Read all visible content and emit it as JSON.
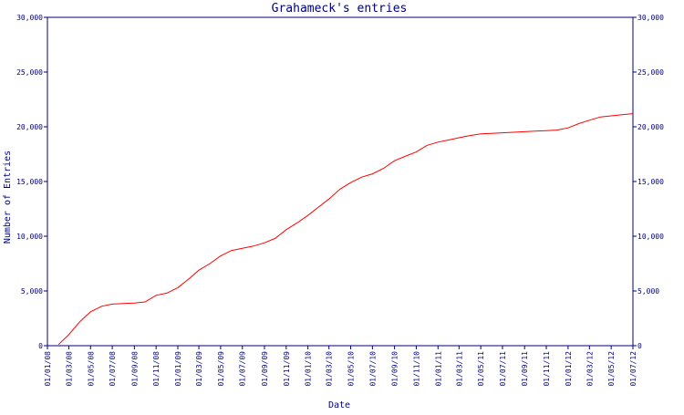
{
  "chart_data": {
    "type": "line",
    "title": "Grahameck's entries",
    "xlabel": "Date",
    "ylabel": "Number of Entries",
    "ylim": [
      0,
      30000
    ],
    "yticks": [
      0,
      5000,
      10000,
      15000,
      20000,
      25000,
      30000
    ],
    "ytick_labels": [
      "0",
      "5,000",
      "10,000",
      "15,000",
      "20,000",
      "25,000",
      "30,000"
    ],
    "xlim": [
      "01/01/08",
      "01/07/12"
    ],
    "xtick_labels": [
      "01/01/08",
      "01/03/08",
      "01/05/08",
      "01/07/08",
      "01/09/08",
      "01/11/08",
      "01/01/09",
      "01/03/09",
      "01/05/09",
      "01/07/09",
      "01/09/09",
      "01/11/09",
      "01/01/10",
      "01/03/10",
      "01/05/10",
      "01/07/10",
      "01/09/10",
      "01/11/10",
      "01/01/11",
      "01/03/11",
      "01/05/11",
      "01/07/11",
      "01/09/11",
      "01/11/11",
      "01/01/12",
      "01/03/12",
      "01/05/12",
      "01/07/12"
    ],
    "grid": false,
    "right_axis_mirrored": true,
    "colors": {
      "axis": "#000080",
      "line": "#ff0000",
      "background": "#ffffff"
    },
    "series": [
      {
        "name": "",
        "x": [
          "01/02/08",
          "01/03/08",
          "01/04/08",
          "01/05/08",
          "01/06/08",
          "01/07/08",
          "01/08/08",
          "01/09/08",
          "01/10/08",
          "01/11/08",
          "01/12/08",
          "01/01/09",
          "01/02/09",
          "01/03/09",
          "01/04/09",
          "01/05/09",
          "01/06/09",
          "01/07/09",
          "01/08/09",
          "01/09/09",
          "01/10/09",
          "01/11/09",
          "01/12/09",
          "01/01/10",
          "01/02/10",
          "01/03/10",
          "01/04/10",
          "01/05/10",
          "01/06/10",
          "01/07/10",
          "01/08/10",
          "01/09/10",
          "01/10/10",
          "01/11/10",
          "01/12/10",
          "01/01/11",
          "01/02/11",
          "01/03/11",
          "01/04/11",
          "01/05/11",
          "01/06/11",
          "01/07/11",
          "01/08/11",
          "01/09/11",
          "01/10/11",
          "01/11/11",
          "01/12/11",
          "01/01/12",
          "01/02/12",
          "01/03/12",
          "01/04/12",
          "01/05/12",
          "01/06/12",
          "01/07/12"
        ],
        "values": [
          100,
          1000,
          2200,
          3100,
          3600,
          3800,
          3850,
          3900,
          4000,
          4600,
          4800,
          5300,
          6100,
          6900,
          7500,
          8200,
          8700,
          8900,
          9100,
          9400,
          9800,
          10600,
          11200,
          11900,
          12700,
          13400,
          14300,
          14900,
          15400,
          15700,
          16200,
          16900,
          17300,
          17700,
          18300,
          18600,
          18800,
          19000,
          19200,
          19350,
          19400,
          19450,
          19500,
          19550,
          19600,
          19650,
          19700,
          19900,
          20300,
          20600,
          20900,
          21000,
          21100,
          21200
        ]
      }
    ]
  }
}
